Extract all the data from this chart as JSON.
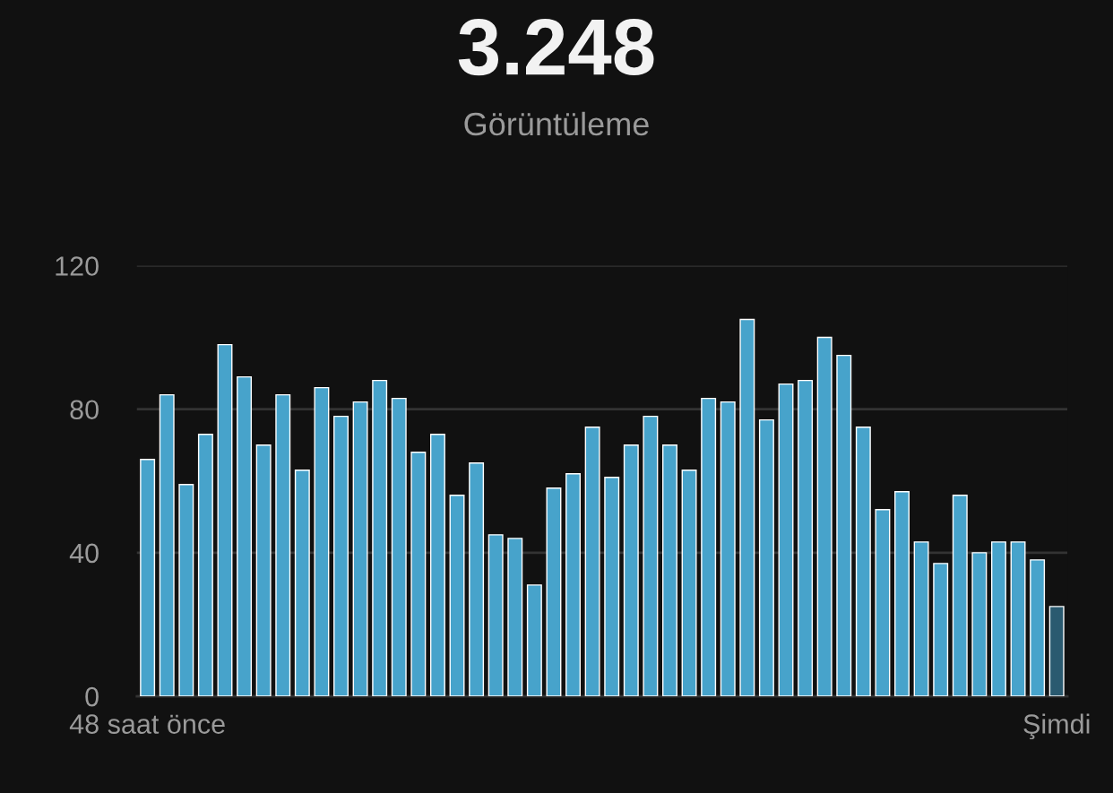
{
  "chart_data": {
    "type": "bar",
    "title": "3.248",
    "subtitle": "Görüntüleme",
    "categories": [
      "48 saat önce",
      null,
      null,
      null,
      null,
      null,
      null,
      null,
      null,
      null,
      null,
      null,
      null,
      null,
      null,
      null,
      null,
      null,
      null,
      null,
      null,
      null,
      null,
      null,
      null,
      null,
      null,
      null,
      null,
      null,
      null,
      null,
      null,
      null,
      null,
      null,
      null,
      null,
      null,
      null,
      null,
      null,
      null,
      null,
      null,
      null,
      null,
      "Şimdi"
    ],
    "values": [
      66,
      84,
      59,
      73,
      98,
      89,
      70,
      84,
      63,
      86,
      78,
      82,
      88,
      83,
      68,
      73,
      56,
      65,
      45,
      44,
      31,
      58,
      62,
      75,
      61,
      70,
      78,
      70,
      63,
      83,
      82,
      105,
      77,
      87,
      88,
      100,
      95,
      75,
      52,
      57,
      43,
      37,
      56,
      40,
      43,
      43,
      38,
      25
    ],
    "colors": [
      "#47a3cb",
      "#47a3cb",
      "#47a3cb",
      "#47a3cb",
      "#47a3cb",
      "#47a3cb",
      "#47a3cb",
      "#47a3cb",
      "#47a3cb",
      "#47a3cb",
      "#47a3cb",
      "#47a3cb",
      "#47a3cb",
      "#47a3cb",
      "#47a3cb",
      "#47a3cb",
      "#47a3cb",
      "#47a3cb",
      "#47a3cb",
      "#47a3cb",
      "#47a3cb",
      "#47a3cb",
      "#47a3cb",
      "#47a3cb",
      "#47a3cb",
      "#47a3cb",
      "#47a3cb",
      "#47a3cb",
      "#47a3cb",
      "#47a3cb",
      "#47a3cb",
      "#47a3cb",
      "#47a3cb",
      "#47a3cb",
      "#47a3cb",
      "#47a3cb",
      "#47a3cb",
      "#47a3cb",
      "#47a3cb",
      "#47a3cb",
      "#47a3cb",
      "#47a3cb",
      "#47a3cb",
      "#47a3cb",
      "#47a3cb",
      "#47a3cb",
      "#47a3cb",
      "#2a5a70"
    ],
    "ylim": [
      0,
      120
    ],
    "yticks": [
      0,
      40,
      80,
      120
    ],
    "grid": "y",
    "legend": false
  }
}
